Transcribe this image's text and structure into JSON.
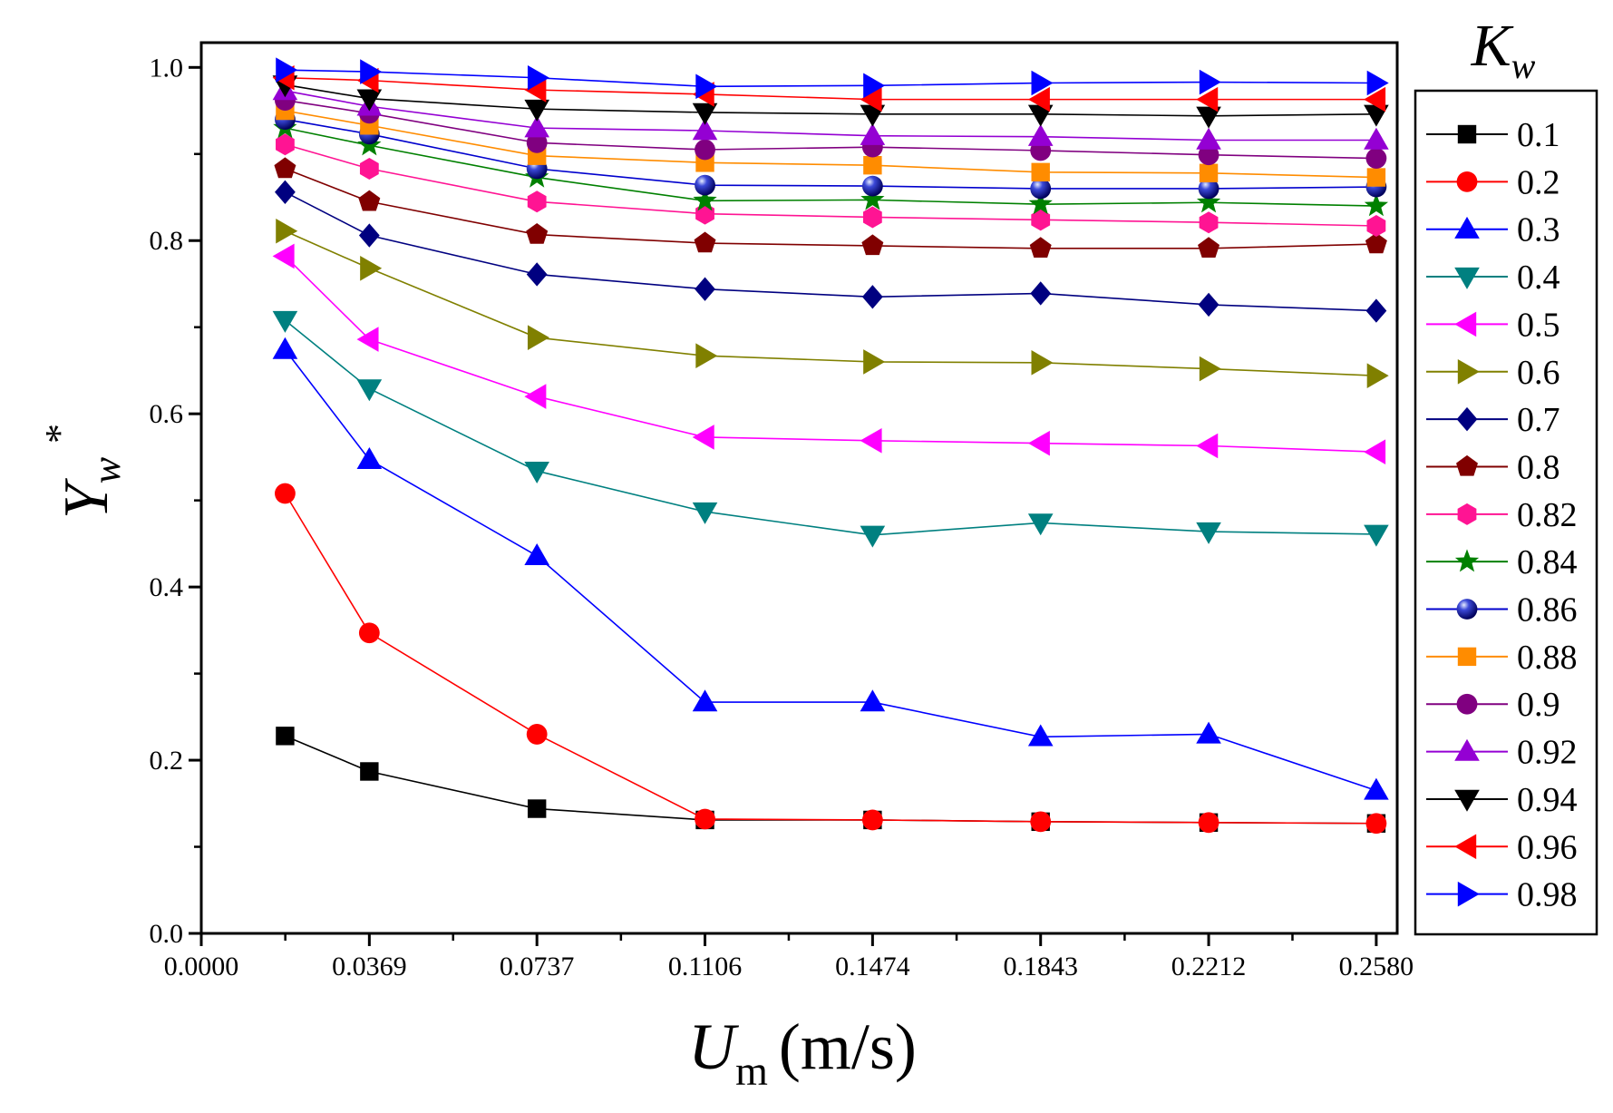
{
  "chart_data": {
    "type": "line",
    "xlabel": "U",
    "xlabel_sub": "m",
    "xlabel_unit": "(m/s)",
    "ylabel": "Y",
    "ylabel_sub": "w",
    "ylabel_sup": "*",
    "legend_title": "K",
    "legend_title_sub": "w",
    "x_ticks": [
      "0.0000",
      "0.0369",
      "0.0737",
      "0.1106",
      "0.1474",
      "0.1843",
      "0.2212",
      "0.2580"
    ],
    "x_tick_values": [
      0,
      0.0369,
      0.0737,
      0.1106,
      0.1474,
      0.1843,
      0.2212,
      0.258
    ],
    "y_ticks": [
      "0.0",
      "0.2",
      "0.4",
      "0.6",
      "0.8",
      "1.0"
    ],
    "y_tick_values": [
      0,
      0.2,
      0.4,
      0.6,
      0.8,
      1.0
    ],
    "xlim": [
      0,
      0.2626
    ],
    "ylim": [
      0,
      1.0286
    ],
    "x": [
      0.0184,
      0.0369,
      0.0737,
      0.1106,
      0.1474,
      0.1843,
      0.2212,
      0.258
    ],
    "series": [
      {
        "name": "0.1",
        "color": "#000000",
        "marker": "square",
        "values": [
          0.228,
          0.187,
          0.144,
          0.131,
          0.131,
          0.129,
          0.128,
          0.127
        ]
      },
      {
        "name": "0.2",
        "color": "#ff0000",
        "marker": "circle",
        "values": [
          0.508,
          0.347,
          0.23,
          0.132,
          0.131,
          0.129,
          0.128,
          0.127
        ]
      },
      {
        "name": "0.3",
        "color": "#0000ff",
        "marker": "triangle-up",
        "values": [
          0.674,
          0.547,
          0.436,
          0.267,
          0.267,
          0.227,
          0.23,
          0.165
        ]
      },
      {
        "name": "0.4",
        "color": "#008080",
        "marker": "triangle-down",
        "values": [
          0.708,
          0.629,
          0.534,
          0.487,
          0.46,
          0.474,
          0.464,
          0.461
        ]
      },
      {
        "name": "0.5",
        "color": "#ff00ff",
        "marker": "triangle-left",
        "values": [
          0.782,
          0.686,
          0.62,
          0.573,
          0.569,
          0.566,
          0.563,
          0.556
        ]
      },
      {
        "name": "0.6",
        "color": "#808000",
        "marker": "triangle-right",
        "values": [
          0.811,
          0.768,
          0.688,
          0.667,
          0.66,
          0.659,
          0.652,
          0.644
        ]
      },
      {
        "name": "0.7",
        "color": "#000080",
        "marker": "diamond",
        "values": [
          0.856,
          0.806,
          0.761,
          0.744,
          0.735,
          0.739,
          0.726,
          0.719
        ]
      },
      {
        "name": "0.8",
        "color": "#800000",
        "marker": "pentagon",
        "values": [
          0.883,
          0.845,
          0.807,
          0.797,
          0.794,
          0.791,
          0.791,
          0.796
        ]
      },
      {
        "name": "0.82",
        "color": "#ff1493",
        "marker": "hexagon",
        "values": [
          0.911,
          0.883,
          0.845,
          0.831,
          0.827,
          0.824,
          0.821,
          0.817
        ]
      },
      {
        "name": "0.84",
        "color": "#008000",
        "marker": "star",
        "values": [
          0.93,
          0.91,
          0.873,
          0.846,
          0.847,
          0.842,
          0.844,
          0.84
        ]
      },
      {
        "name": "0.86",
        "color": "#0000cd",
        "marker": "sphere",
        "values": [
          0.94,
          0.923,
          0.883,
          0.864,
          0.863,
          0.86,
          0.86,
          0.862
        ]
      },
      {
        "name": "0.88",
        "color": "#ff8c00",
        "marker": "square",
        "values": [
          0.95,
          0.933,
          0.898,
          0.89,
          0.887,
          0.879,
          0.878,
          0.873
        ]
      },
      {
        "name": "0.9",
        "color": "#800080",
        "marker": "circle",
        "values": [
          0.962,
          0.947,
          0.913,
          0.905,
          0.908,
          0.904,
          0.899,
          0.895
        ]
      },
      {
        "name": "0.92",
        "color": "#9400d3",
        "marker": "triangle-up",
        "values": [
          0.973,
          0.955,
          0.93,
          0.927,
          0.921,
          0.92,
          0.916,
          0.916
        ]
      },
      {
        "name": "0.94",
        "color": "#000000",
        "marker": "triangle-down",
        "values": [
          0.98,
          0.964,
          0.952,
          0.948,
          0.946,
          0.946,
          0.944,
          0.946
        ]
      },
      {
        "name": "0.96",
        "color": "#ff0000",
        "marker": "triangle-left",
        "values": [
          0.988,
          0.985,
          0.974,
          0.969,
          0.963,
          0.963,
          0.963,
          0.963
        ]
      },
      {
        "name": "0.98",
        "color": "#0000ff",
        "marker": "triangle-right",
        "values": [
          0.997,
          0.995,
          0.988,
          0.978,
          0.979,
          0.982,
          0.983,
          0.982
        ]
      }
    ]
  }
}
